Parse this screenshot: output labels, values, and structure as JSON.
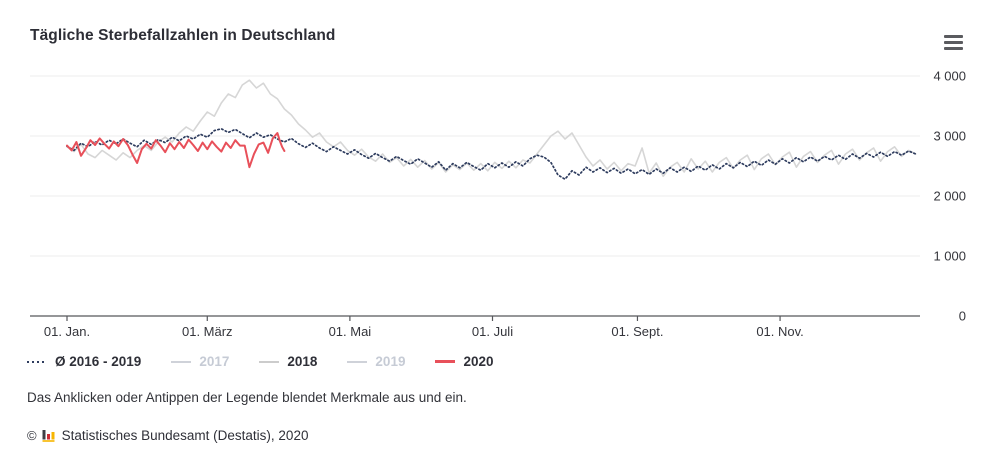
{
  "header": {
    "title": "Tägliche Sterbefallzahlen in Deutschland"
  },
  "colors": {
    "title_text": "#2d2e36",
    "body_text": "#33343a",
    "axis_text": "#34353b",
    "dimmed_legend_text": "#c6cbd5",
    "grid_line": "#ececec",
    "axis_line": "#56575b",
    "series_avg": "#2e3c5e",
    "series_gray": "#d6d6d6",
    "series_2020": "#e8505a",
    "menu_icon": "#5a5b5f"
  },
  "chart_data": {
    "type": "line",
    "title": "Tägliche Sterbefallzahlen in Deutschland",
    "xlabel": "",
    "ylabel": "",
    "ylim": [
      0,
      4000
    ],
    "x_domain_days": [
      1,
      365
    ],
    "grid": true,
    "legend_position": "bottom",
    "y_ticks": [
      0,
      1000,
      2000,
      3000,
      4000
    ],
    "y_tick_labels": [
      "0",
      "1 000",
      "2 000",
      "3 000",
      "4 000"
    ],
    "x_tick_days": [
      1,
      61,
      122,
      183,
      245,
      306
    ],
    "x_tick_labels": [
      "01. Jan.",
      "01. März",
      "01. Mai",
      "01. Juli",
      "01. Sept.",
      "01. Nov."
    ],
    "series": [
      {
        "name": "Ø 2016 - 2019",
        "style": "dotted",
        "color": "#2e3c5e",
        "visible": true,
        "points": [
          [
            1,
            2830
          ],
          [
            4,
            2760
          ],
          [
            7,
            2880
          ],
          [
            10,
            2820
          ],
          [
            13,
            2910
          ],
          [
            16,
            2850
          ],
          [
            19,
            2930
          ],
          [
            22,
            2870
          ],
          [
            25,
            2950
          ],
          [
            28,
            2880
          ],
          [
            31,
            2820
          ],
          [
            34,
            2930
          ],
          [
            37,
            2860
          ],
          [
            40,
            2940
          ],
          [
            43,
            2890
          ],
          [
            46,
            2980
          ],
          [
            49,
            2920
          ],
          [
            52,
            3000
          ],
          [
            55,
            2950
          ],
          [
            58,
            3030
          ],
          [
            61,
            2980
          ],
          [
            64,
            3090
          ],
          [
            67,
            3120
          ],
          [
            70,
            3060
          ],
          [
            73,
            3110
          ],
          [
            76,
            3040
          ],
          [
            79,
            2970
          ],
          [
            82,
            3050
          ],
          [
            85,
            2980
          ],
          [
            88,
            3020
          ],
          [
            91,
            2950
          ],
          [
            94,
            2900
          ],
          [
            97,
            2960
          ],
          [
            100,
            2870
          ],
          [
            103,
            2810
          ],
          [
            106,
            2880
          ],
          [
            109,
            2800
          ],
          [
            112,
            2740
          ],
          [
            115,
            2820
          ],
          [
            118,
            2760
          ],
          [
            121,
            2700
          ],
          [
            124,
            2770
          ],
          [
            127,
            2690
          ],
          [
            130,
            2630
          ],
          [
            133,
            2710
          ],
          [
            136,
            2640
          ],
          [
            139,
            2580
          ],
          [
            142,
            2660
          ],
          [
            145,
            2590
          ],
          [
            148,
            2530
          ],
          [
            151,
            2620
          ],
          [
            154,
            2550
          ],
          [
            157,
            2480
          ],
          [
            160,
            2570
          ],
          [
            163,
            2430
          ],
          [
            166,
            2540
          ],
          [
            169,
            2470
          ],
          [
            172,
            2560
          ],
          [
            175,
            2490
          ],
          [
            178,
            2430
          ],
          [
            181,
            2540
          ],
          [
            184,
            2470
          ],
          [
            187,
            2550
          ],
          [
            190,
            2480
          ],
          [
            193,
            2570
          ],
          [
            196,
            2500
          ],
          [
            199,
            2620
          ],
          [
            202,
            2680
          ],
          [
            205,
            2650
          ],
          [
            208,
            2560
          ],
          [
            211,
            2350
          ],
          [
            214,
            2280
          ],
          [
            217,
            2420
          ],
          [
            220,
            2350
          ],
          [
            223,
            2480
          ],
          [
            226,
            2400
          ],
          [
            229,
            2470
          ],
          [
            232,
            2390
          ],
          [
            235,
            2460
          ],
          [
            238,
            2380
          ],
          [
            241,
            2450
          ],
          [
            244,
            2370
          ],
          [
            247,
            2440
          ],
          [
            250,
            2360
          ],
          [
            253,
            2450
          ],
          [
            256,
            2380
          ],
          [
            259,
            2470
          ],
          [
            262,
            2400
          ],
          [
            265,
            2480
          ],
          [
            268,
            2410
          ],
          [
            271,
            2500
          ],
          [
            274,
            2430
          ],
          [
            277,
            2520
          ],
          [
            280,
            2450
          ],
          [
            283,
            2540
          ],
          [
            286,
            2470
          ],
          [
            289,
            2560
          ],
          [
            292,
            2490
          ],
          [
            295,
            2580
          ],
          [
            298,
            2510
          ],
          [
            301,
            2600
          ],
          [
            304,
            2530
          ],
          [
            307,
            2620
          ],
          [
            310,
            2550
          ],
          [
            313,
            2640
          ],
          [
            316,
            2570
          ],
          [
            319,
            2650
          ],
          [
            322,
            2580
          ],
          [
            325,
            2660
          ],
          [
            328,
            2600
          ],
          [
            331,
            2680
          ],
          [
            334,
            2610
          ],
          [
            337,
            2700
          ],
          [
            340,
            2630
          ],
          [
            343,
            2710
          ],
          [
            346,
            2650
          ],
          [
            349,
            2730
          ],
          [
            352,
            2660
          ],
          [
            355,
            2740
          ],
          [
            358,
            2680
          ],
          [
            361,
            2750
          ],
          [
            364,
            2700
          ]
        ]
      },
      {
        "name": "2017",
        "style": "solid",
        "color": "#d6d6d6",
        "visible": false,
        "points": []
      },
      {
        "name": "2018",
        "style": "solid",
        "color": "#d6d6d6",
        "visible": true,
        "points": [
          [
            1,
            2820
          ],
          [
            4,
            2740
          ],
          [
            7,
            2860
          ],
          [
            10,
            2700
          ],
          [
            13,
            2640
          ],
          [
            16,
            2760
          ],
          [
            19,
            2680
          ],
          [
            22,
            2600
          ],
          [
            25,
            2720
          ],
          [
            28,
            2640
          ],
          [
            31,
            2760
          ],
          [
            34,
            2840
          ],
          [
            37,
            2760
          ],
          [
            40,
            2900
          ],
          [
            43,
            2980
          ],
          [
            46,
            2900
          ],
          [
            49,
            3050
          ],
          [
            52,
            3150
          ],
          [
            55,
            3080
          ],
          [
            58,
            3250
          ],
          [
            61,
            3400
          ],
          [
            64,
            3330
          ],
          [
            67,
            3550
          ],
          [
            70,
            3700
          ],
          [
            73,
            3640
          ],
          [
            76,
            3850
          ],
          [
            79,
            3930
          ],
          [
            82,
            3800
          ],
          [
            85,
            3880
          ],
          [
            88,
            3700
          ],
          [
            91,
            3620
          ],
          [
            94,
            3450
          ],
          [
            97,
            3350
          ],
          [
            100,
            3200
          ],
          [
            103,
            3100
          ],
          [
            106,
            2980
          ],
          [
            109,
            3050
          ],
          [
            112,
            2900
          ],
          [
            115,
            2820
          ],
          [
            118,
            2900
          ],
          [
            121,
            2760
          ],
          [
            124,
            2680
          ],
          [
            127,
            2780
          ],
          [
            130,
            2650
          ],
          [
            133,
            2580
          ],
          [
            136,
            2700
          ],
          [
            139,
            2560
          ],
          [
            142,
            2640
          ],
          [
            145,
            2500
          ],
          [
            148,
            2610
          ],
          [
            151,
            2480
          ],
          [
            154,
            2590
          ],
          [
            157,
            2450
          ],
          [
            160,
            2560
          ],
          [
            163,
            2400
          ],
          [
            166,
            2520
          ],
          [
            169,
            2440
          ],
          [
            172,
            2550
          ],
          [
            175,
            2430
          ],
          [
            178,
            2540
          ],
          [
            181,
            2420
          ],
          [
            184,
            2560
          ],
          [
            187,
            2460
          ],
          [
            190,
            2580
          ],
          [
            193,
            2470
          ],
          [
            196,
            2600
          ],
          [
            199,
            2550
          ],
          [
            202,
            2700
          ],
          [
            205,
            2850
          ],
          [
            208,
            3000
          ],
          [
            211,
            3080
          ],
          [
            214,
            2950
          ],
          [
            217,
            3050
          ],
          [
            220,
            2850
          ],
          [
            223,
            2650
          ],
          [
            226,
            2500
          ],
          [
            229,
            2600
          ],
          [
            232,
            2450
          ],
          [
            235,
            2560
          ],
          [
            238,
            2420
          ],
          [
            241,
            2540
          ],
          [
            244,
            2500
          ],
          [
            247,
            2800
          ],
          [
            250,
            2380
          ],
          [
            253,
            2550
          ],
          [
            256,
            2330
          ],
          [
            259,
            2480
          ],
          [
            262,
            2560
          ],
          [
            265,
            2400
          ],
          [
            268,
            2620
          ],
          [
            271,
            2450
          ],
          [
            274,
            2580
          ],
          [
            277,
            2400
          ],
          [
            280,
            2560
          ],
          [
            283,
            2640
          ],
          [
            286,
            2460
          ],
          [
            289,
            2600
          ],
          [
            292,
            2680
          ],
          [
            295,
            2440
          ],
          [
            298,
            2620
          ],
          [
            301,
            2700
          ],
          [
            304,
            2520
          ],
          [
            307,
            2650
          ],
          [
            310,
            2730
          ],
          [
            313,
            2480
          ],
          [
            316,
            2660
          ],
          [
            319,
            2740
          ],
          [
            322,
            2560
          ],
          [
            325,
            2680
          ],
          [
            328,
            2760
          ],
          [
            331,
            2530
          ],
          [
            334,
            2700
          ],
          [
            337,
            2780
          ],
          [
            340,
            2600
          ],
          [
            343,
            2720
          ],
          [
            346,
            2800
          ],
          [
            349,
            2580
          ],
          [
            352,
            2740
          ],
          [
            355,
            2820
          ],
          [
            358,
            2660
          ],
          [
            361,
            2760
          ],
          [
            364,
            2700
          ]
        ]
      },
      {
        "name": "2019",
        "style": "solid",
        "color": "#d6d6d6",
        "visible": false,
        "points": []
      },
      {
        "name": "2020",
        "style": "solid",
        "color": "#e8505a",
        "visible": true,
        "points": [
          [
            1,
            2840
          ],
          [
            3,
            2760
          ],
          [
            5,
            2900
          ],
          [
            7,
            2670
          ],
          [
            9,
            2790
          ],
          [
            11,
            2930
          ],
          [
            13,
            2850
          ],
          [
            15,
            2960
          ],
          [
            17,
            2870
          ],
          [
            19,
            2790
          ],
          [
            21,
            2910
          ],
          [
            23,
            2830
          ],
          [
            25,
            2950
          ],
          [
            27,
            2850
          ],
          [
            29,
            2690
          ],
          [
            31,
            2550
          ],
          [
            33,
            2780
          ],
          [
            35,
            2870
          ],
          [
            37,
            2790
          ],
          [
            39,
            2930
          ],
          [
            41,
            2840
          ],
          [
            43,
            2730
          ],
          [
            45,
            2880
          ],
          [
            47,
            2780
          ],
          [
            49,
            2900
          ],
          [
            51,
            2800
          ],
          [
            53,
            2940
          ],
          [
            55,
            2850
          ],
          [
            57,
            2750
          ],
          [
            59,
            2890
          ],
          [
            61,
            2780
          ],
          [
            63,
            2910
          ],
          [
            65,
            2820
          ],
          [
            67,
            2740
          ],
          [
            69,
            2890
          ],
          [
            71,
            2800
          ],
          [
            73,
            2930
          ],
          [
            75,
            2840
          ],
          [
            77,
            2840
          ],
          [
            79,
            2480
          ],
          [
            81,
            2700
          ],
          [
            83,
            2860
          ],
          [
            85,
            2890
          ],
          [
            87,
            2720
          ],
          [
            89,
            2960
          ],
          [
            91,
            3050
          ],
          [
            92,
            2920
          ],
          [
            93,
            2820
          ],
          [
            94,
            2750
          ]
        ]
      }
    ]
  },
  "legend": {
    "items": [
      {
        "label": "Ø 2016 - 2019",
        "style": "dotted",
        "color": "#2e3c5e",
        "state": "active"
      },
      {
        "label": "2017",
        "style": "solid",
        "color": "#cfd2d9",
        "state": "hidden"
      },
      {
        "label": "2018",
        "style": "solid",
        "color": "#cccccc",
        "state": "active"
      },
      {
        "label": "2019",
        "style": "solid",
        "color": "#cfd2d9",
        "state": "hidden"
      },
      {
        "label": "2020",
        "style": "solid",
        "color": "#e8505a",
        "state": "active"
      }
    ]
  },
  "note": {
    "text": "Das Anklicken oder Antippen der Legende blendet Merkmale aus und ein."
  },
  "source": {
    "copyright": "©",
    "logo": "destatis-bar-chart-logo",
    "text": "Statistisches Bundesamt (Destatis), 2020"
  }
}
